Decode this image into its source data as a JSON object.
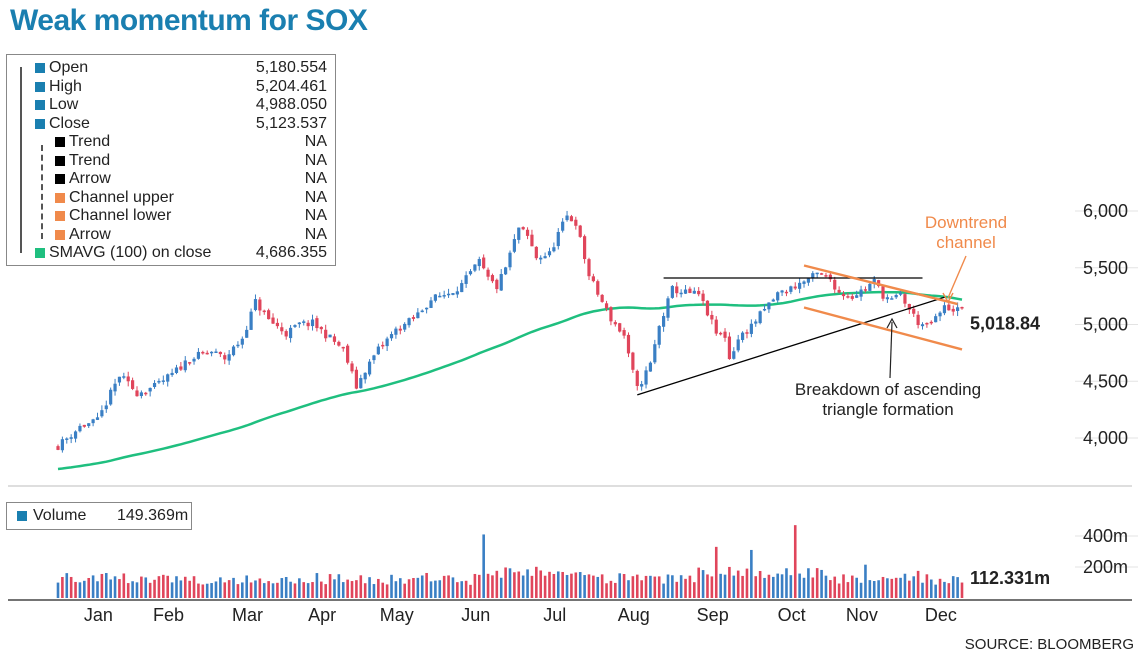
{
  "title": "Weak momentum for SOX",
  "legend": {
    "items": [
      {
        "label": "Open",
        "value": "5,180.554",
        "color": "#1a7fb0"
      },
      {
        "label": "High",
        "value": "5,204.461",
        "color": "#1a7fb0"
      },
      {
        "label": "Low",
        "value": "4,988.050",
        "color": "#1a7fb0"
      },
      {
        "label": "Close",
        "value": "5,123.537",
        "color": "#1a7fb0"
      },
      {
        "label": "Trend",
        "value": "NA",
        "color": "#000000"
      },
      {
        "label": "Trend",
        "value": "NA",
        "color": "#000000"
      },
      {
        "label": "Arrow",
        "value": "NA",
        "color": "#000000"
      },
      {
        "label": "Channel upper",
        "value": "NA",
        "color": "#f08a4b"
      },
      {
        "label": "Channel lower",
        "value": "NA",
        "color": "#f08a4b"
      },
      {
        "label": "Arrow",
        "value": "NA",
        "color": "#f08a4b"
      },
      {
        "label": "SMAVG (100) on close",
        "value": "4,686.355",
        "color": "#1fbf7f"
      }
    ]
  },
  "volume_legend": {
    "label": "Volume",
    "value": "149.369m"
  },
  "source": "SOURCE: BLOOMBERG",
  "chart_data": [
    {
      "type": "candlestick",
      "title": "Weak momentum for SOX",
      "categories": [
        "Jan",
        "Feb",
        "Mar",
        "Apr",
        "May",
        "Jun",
        "Jul",
        "Aug",
        "Sep",
        "Oct",
        "Nov",
        "Dec"
      ],
      "ylim": [
        3600,
        6150
      ],
      "yticks": [
        4000,
        4500,
        5000,
        5500,
        6000
      ],
      "ytick_labels": [
        "4,000",
        "4,500",
        "5,000",
        "5,500",
        "6,000"
      ],
      "price_anchors": [
        [
          0,
          3930
        ],
        [
          5,
          4100
        ],
        [
          9,
          4150
        ],
        [
          14,
          4550
        ],
        [
          18,
          4400
        ],
        [
          22,
          4450
        ],
        [
          26,
          4560
        ],
        [
          30,
          4700
        ],
        [
          35,
          4760
        ],
        [
          38,
          4700
        ],
        [
          42,
          4880
        ],
        [
          45,
          5200
        ],
        [
          48,
          5040
        ],
        [
          52,
          4920
        ],
        [
          55,
          5000
        ],
        [
          58,
          5010
        ],
        [
          62,
          4880
        ],
        [
          65,
          4780
        ],
        [
          68,
          4450
        ],
        [
          70,
          4600
        ],
        [
          73,
          4780
        ],
        [
          77,
          4950
        ],
        [
          81,
          5050
        ],
        [
          85,
          5220
        ],
        [
          89,
          5280
        ],
        [
          92,
          5350
        ],
        [
          96,
          5550
        ],
        [
          98,
          5400
        ],
        [
          100,
          5330
        ],
        [
          102,
          5500
        ],
        [
          105,
          5850
        ],
        [
          107,
          5770
        ],
        [
          109,
          5590
        ],
        [
          112,
          5620
        ],
        [
          114,
          5800
        ],
        [
          116,
          5950
        ],
        [
          118,
          5900
        ],
        [
          121,
          5430
        ],
        [
          123,
          5270
        ],
        [
          126,
          5050
        ],
        [
          129,
          4900
        ],
        [
          130,
          4720
        ],
        [
          132,
          4430
        ],
        [
          135,
          4650
        ],
        [
          137,
          4980
        ],
        [
          140,
          5310
        ],
        [
          143,
          5280
        ],
        [
          146,
          5260
        ],
        [
          148,
          5100
        ],
        [
          150,
          4920
        ],
        [
          152,
          4900
        ],
        [
          153,
          4700
        ],
        [
          155,
          4870
        ],
        [
          158,
          4990
        ],
        [
          161,
          5130
        ],
        [
          164,
          5270
        ],
        [
          167,
          5320
        ],
        [
          170,
          5380
        ],
        [
          173,
          5440
        ],
        [
          176,
          5400
        ],
        [
          178,
          5280
        ],
        [
          181,
          5250
        ],
        [
          184,
          5320
        ],
        [
          186,
          5380
        ],
        [
          188,
          5260
        ],
        [
          190,
          5210
        ],
        [
          192,
          5260
        ],
        [
          194,
          5130
        ],
        [
          196,
          5020
        ],
        [
          198,
          4980
        ],
        [
          200,
          5050
        ],
        [
          202,
          5150
        ],
        [
          205,
          5130
        ]
      ],
      "trend_lines": [
        {
          "name": "upper-trend",
          "from": [
            138,
            5410
          ],
          "to": [
            197,
            5410
          ],
          "color": "#000000"
        },
        {
          "name": "lower-trend",
          "from": [
            132,
            4380
          ],
          "to": [
            202,
            5240
          ],
          "color": "#000000"
        },
        {
          "name": "channel-upper",
          "from": [
            170,
            5520
          ],
          "to": [
            205,
            5180
          ],
          "color": "#f08a4b"
        },
        {
          "name": "channel-lower",
          "from": [
            170,
            5150
          ],
          "to": [
            206,
            4780
          ],
          "color": "#f08a4b"
        }
      ],
      "sma_100": {
        "name": "SMAVG (100) on close",
        "last": 4686.355
      },
      "last_label": "5,018.84",
      "annotations": [
        {
          "text": [
            "Downtrend",
            "channel"
          ],
          "color": "#f08a4b"
        },
        {
          "text": [
            "Breakdown of ascending",
            "triangle formation"
          ],
          "color": "#222222"
        }
      ]
    },
    {
      "type": "bar",
      "title": "Volume",
      "ylim": [
        0,
        480
      ],
      "yticks": [
        200,
        400
      ],
      "ytick_labels": [
        "200m",
        "400m"
      ],
      "last_label": "112.331m",
      "spikes": [
        [
          97,
          410
        ],
        [
          150,
          330
        ],
        [
          158,
          310
        ],
        [
          168,
          470
        ],
        [
          184,
          215
        ],
        [
          196,
          175
        ]
      ],
      "typical_range": [
        85,
        175
      ]
    }
  ]
}
